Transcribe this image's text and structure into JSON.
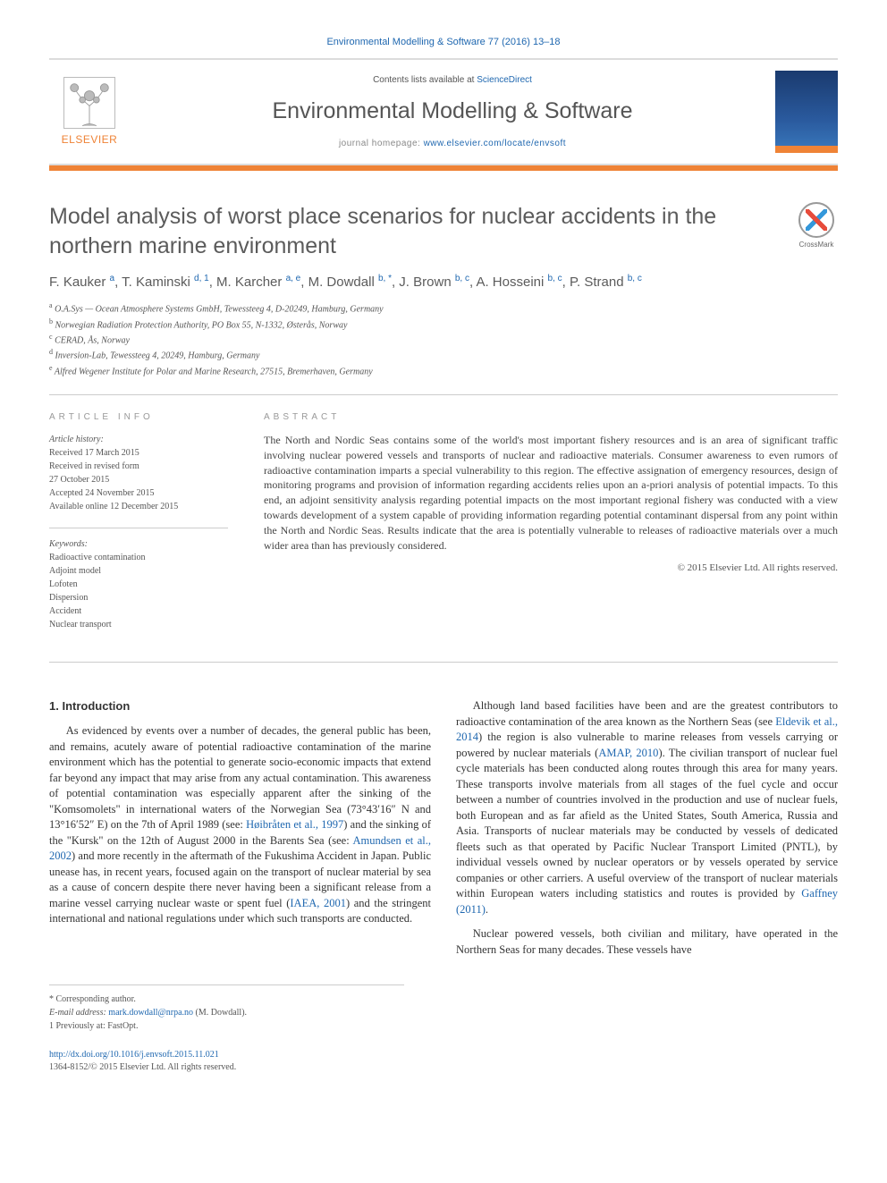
{
  "header": {
    "citation": "Environmental Modelling & Software 77 (2016) 13–18",
    "contents_prefix": "Contents lists available at ",
    "contents_link": "ScienceDirect",
    "journal_title": "Environmental Modelling & Software",
    "homepage_prefix": "journal homepage: ",
    "homepage_url": "www.elsevier.com/locate/envsoft",
    "publisher_name": "ELSEVIER",
    "colors": {
      "orange": "#ef8336",
      "link": "#2068b0",
      "rule": "#dcdcdc"
    }
  },
  "crossmark_label": "CrossMark",
  "article": {
    "title": "Model analysis of worst place scenarios for nuclear accidents in the northern marine environment",
    "authors_html": "F. Kauker <sup>a</sup>, T. Kaminski <sup>d, 1</sup>, M. Karcher <sup>a, e</sup>, M. Dowdall <sup>b, *</sup>, J. Brown <sup>b, c</sup>, A. Hosseini <sup>b, c</sup>, P. Strand <sup>b, c</sup>",
    "affiliations": [
      {
        "key": "a",
        "text": "O.A.Sys — Ocean Atmosphere Systems GmbH, Tewessteeg 4, D-20249, Hamburg, Germany"
      },
      {
        "key": "b",
        "text": "Norwegian Radiation Protection Authority, PO Box 55, N-1332, Østerås, Norway"
      },
      {
        "key": "c",
        "text": "CERAD, Ås, Norway"
      },
      {
        "key": "d",
        "text": "Inversion-Lab, Tewessteeg 4, 20249, Hamburg, Germany"
      },
      {
        "key": "e",
        "text": "Alfred Wegener Institute for Polar and Marine Research, 27515, Bremerhaven, Germany"
      }
    ]
  },
  "article_info": {
    "label": "ARTICLE INFO",
    "history_header": "Article history:",
    "history": [
      "Received 17 March 2015",
      "Received in revised form",
      "27 October 2015",
      "Accepted 24 November 2015",
      "Available online 12 December 2015"
    ],
    "keywords_header": "Keywords:",
    "keywords": [
      "Radioactive contamination",
      "Adjoint model",
      "Lofoten",
      "Dispersion",
      "Accident",
      "Nuclear transport"
    ]
  },
  "abstract": {
    "label": "ABSTRACT",
    "text": "The North and Nordic Seas contains some of the world's most important fishery resources and is an area of significant traffic involving nuclear powered vessels and transports of nuclear and radioactive materials. Consumer awareness to even rumors of radioactive contamination imparts a special vulnerability to this region. The effective assignation of emergency resources, design of monitoring programs and provision of information regarding accidents relies upon an a-priori analysis of potential impacts. To this end, an adjoint sensitivity analysis regarding potential impacts on the most important regional fishery was conducted with a view towards development of a system capable of providing information regarding potential contaminant dispersal from any point within the North and Nordic Seas. Results indicate that the area is potentially vulnerable to releases of radioactive materials over a much wider area than has previously considered.",
    "copyright": "© 2015 Elsevier Ltd. All rights reserved."
  },
  "body": {
    "section_heading": "1. Introduction",
    "p1": "As evidenced by events over a number of decades, the general public has been, and remains, acutely aware of potential radioactive contamination of the marine environment which has the potential to generate socio-economic impacts that extend far beyond any impact that may arise from any actual contamination. This awareness of potential contamination was especially apparent after the sinking of the \"Komsomolets\" in international waters of the Norwegian Sea (73°43′16″ N and 13°16′52″ E) on the 7th of April 1989 (see: ",
    "r1": "Høibråten et al., 1997",
    "p1b": ") and the sinking of the \"Kursk\" on the 12th of August 2000 in the Barents Sea (see: ",
    "r2": "Amundsen et al., 2002",
    "p1c": ") and more recently in the aftermath of the Fukushima Accident in Japan. Public unease has, in recent years, focused again on the transport of nuclear material by sea as a cause of concern despite there never having been a significant release from a marine vessel ",
    "p1d": "carrying nuclear waste or spent fuel (",
    "r3": "IAEA, 2001",
    "p1e": ") and the stringent international and national regulations under which such transports are conducted.",
    "p2a": "Although land based facilities have been and are the greatest contributors to radioactive contamination of the area known as the Northern Seas (see ",
    "r4": "Eldevik et al., 2014",
    "p2b": ") the region is also vulnerable to marine releases from vessels carrying or powered by nuclear materials (",
    "r5": "AMAP, 2010",
    "p2c": "). The civilian transport of nuclear fuel cycle materials has been conducted along routes through this area for many years. These transports involve materials from all stages of the fuel cycle and occur between a number of countries involved in the production and use of nuclear fuels, both European and as far afield as the United States, South America, Russia and Asia. Transports of nuclear materials may be conducted by vessels of dedicated fleets such as that operated by Pacific Nuclear Transport Limited (PNTL), by individual vessels owned by nuclear operators or by vessels operated by service companies or other carriers. A useful overview of the transport of nuclear materials within European waters including statistics and routes is provided by ",
    "r6": "Gaffney (2011)",
    "p2d": ".",
    "p3": "Nuclear powered vessels, both civilian and military, have operated in the Northern Seas for many decades. These vessels have"
  },
  "footnotes": {
    "corresponding": "* Corresponding author.",
    "email_label": "E-mail address: ",
    "email": "mark.dowdall@nrpa.no",
    "email_person": " (M. Dowdall).",
    "prev": "1 Previously at: FastOpt."
  },
  "footer": {
    "doi": "http://dx.doi.org/10.1016/j.envsoft.2015.11.021",
    "issn_line": "1364-8152/© 2015 Elsevier Ltd. All rights reserved."
  }
}
